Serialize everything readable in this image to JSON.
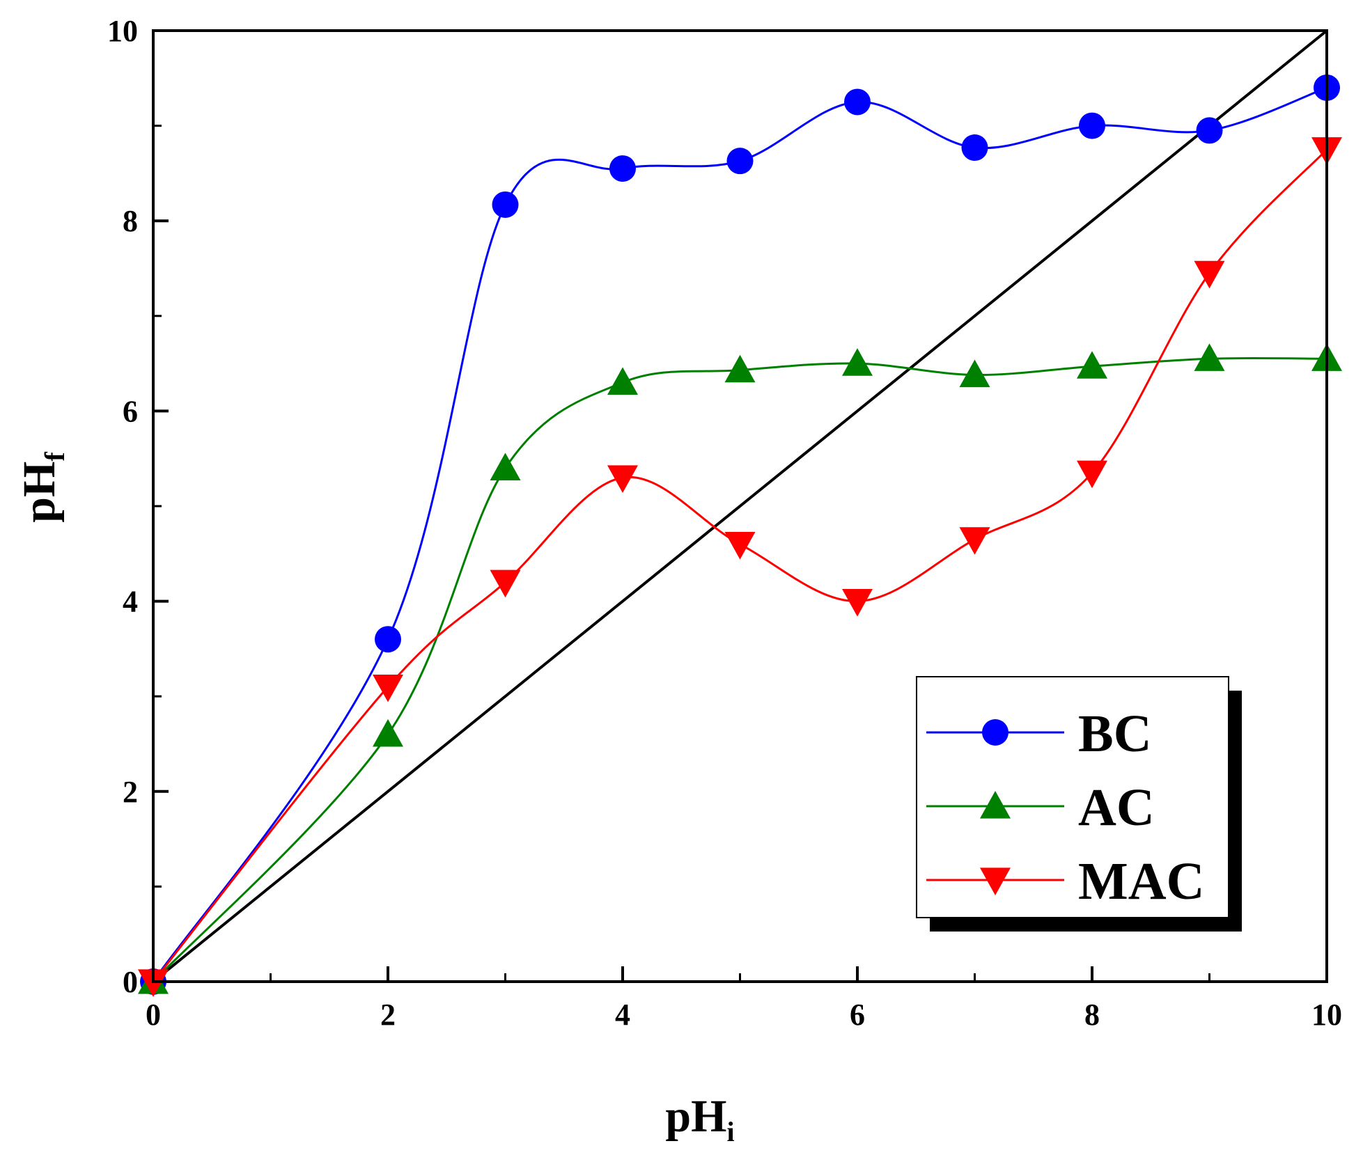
{
  "chart_data": {
    "type": "line",
    "title": "",
    "xlabel": {
      "base": "pH",
      "sub": "i"
    },
    "ylabel": {
      "base": "pH",
      "sub": "f"
    },
    "xlim": [
      0,
      10
    ],
    "ylim": [
      0,
      10
    ],
    "xticks": [
      0,
      2,
      4,
      6,
      8,
      10
    ],
    "yticks": [
      0,
      2,
      4,
      6,
      8,
      10
    ],
    "minor_step": 1,
    "grid": false,
    "legend_position": "bottom-right",
    "reference_line": {
      "name": "y = x",
      "x": [
        0,
        10
      ],
      "y": [
        0,
        10
      ],
      "color": "#000000"
    },
    "series": [
      {
        "name": "BC",
        "color": "#0000ff",
        "marker": "circle",
        "x": [
          0,
          2,
          3,
          4,
          5,
          6,
          7,
          8,
          9,
          10
        ],
        "y": [
          0,
          3.6,
          8.17,
          8.55,
          8.63,
          9.25,
          8.77,
          9.0,
          8.95,
          9.4
        ]
      },
      {
        "name": "AC",
        "color": "#008000",
        "marker": "triangle-up",
        "x": [
          0,
          2,
          3,
          4,
          5,
          6,
          7,
          8,
          9,
          10
        ],
        "y": [
          0,
          2.6,
          5.4,
          6.3,
          6.43,
          6.5,
          6.38,
          6.47,
          6.55,
          6.55
        ]
      },
      {
        "name": "MAC",
        "color": "#ff0000",
        "marker": "triangle-down",
        "x": [
          0,
          2,
          3,
          4,
          5,
          6,
          7,
          8,
          9,
          10
        ],
        "y": [
          0,
          3.1,
          4.2,
          5.3,
          4.6,
          4.0,
          4.65,
          5.35,
          7.45,
          8.75
        ]
      }
    ]
  }
}
